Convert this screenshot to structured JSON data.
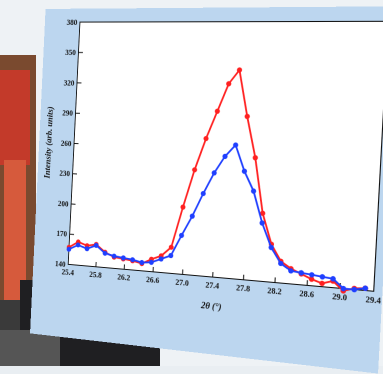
{
  "chart_data": {
    "type": "line",
    "title": "",
    "xlabel": "2θ (°)",
    "ylabel": "Intensity (arb. units)",
    "xlim": [
      25.4,
      29.4
    ],
    "ylim": [
      140,
      380
    ],
    "x_ticks": [
      "25.4",
      "25.8",
      "26.2",
      "26.6",
      "27.0",
      "27.4",
      "27.8",
      "28.2",
      "28.6",
      "29.0",
      "29.4"
    ],
    "y_ticks": [
      "140",
      "170",
      "200",
      "230",
      "260",
      "290",
      "320",
      "350",
      "380"
    ],
    "grid": false,
    "legend": "none",
    "series": [
      {
        "color": "#ff2020",
        "x": [
          25.4,
          25.53,
          25.66,
          25.79,
          25.92,
          26.05,
          26.18,
          26.31,
          26.44,
          26.57,
          26.7,
          26.83,
          26.96,
          27.09,
          27.22,
          27.35,
          27.48,
          27.61,
          27.74,
          27.87,
          28.0,
          28.13,
          28.26,
          28.39,
          28.52,
          28.65,
          28.78,
          28.91,
          29.04,
          29.17,
          29.3
        ],
        "y": [
          157,
          163,
          160,
          162,
          155,
          151,
          150,
          149,
          147,
          152,
          156,
          165,
          204,
          240,
          270,
          296,
          322,
          335,
          292,
          254,
          203,
          175,
          160,
          154,
          150,
          146,
          143,
          146,
          138,
          141,
          142
        ]
      },
      {
        "color": "#1f3fff",
        "x": [
          25.4,
          25.53,
          25.66,
          25.79,
          25.92,
          26.05,
          26.18,
          26.31,
          26.44,
          26.57,
          26.7,
          26.83,
          26.96,
          27.09,
          27.22,
          27.35,
          27.48,
          27.61,
          27.74,
          27.87,
          28.0,
          28.13,
          28.26,
          28.39,
          28.52,
          28.65,
          28.78,
          28.91,
          29.04,
          29.17,
          29.3
        ],
        "y": [
          155,
          160,
          157,
          161,
          154,
          152,
          151,
          150,
          148,
          149,
          153,
          157,
          177,
          196,
          218,
          238,
          254,
          265,
          241,
          223,
          194,
          172,
          158,
          152,
          151,
          150,
          149,
          148,
          140,
          140,
          142
        ]
      }
    ]
  },
  "colors": {
    "plot_background": "#ffffff",
    "card_background": "#bcd6ef",
    "axis": "#111111"
  }
}
